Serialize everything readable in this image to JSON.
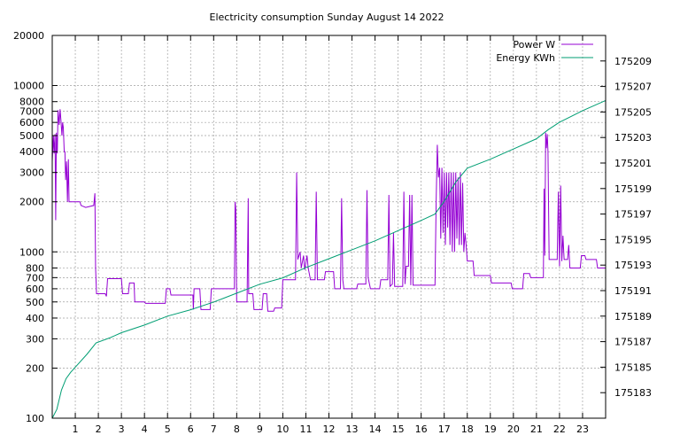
{
  "chart_data": {
    "type": "line",
    "title": "Electricity consumption Sunday August 14 2022",
    "xlabel": "",
    "ylabel": "",
    "y2label": "",
    "x_range": [
      0,
      24
    ],
    "x_ticks": [
      1,
      2,
      3,
      4,
      5,
      6,
      7,
      8,
      9,
      10,
      11,
      12,
      13,
      14,
      15,
      16,
      17,
      18,
      19,
      20,
      21,
      22,
      23
    ],
    "y_scale": "log",
    "y_range": [
      100,
      20000
    ],
    "y_ticks": [
      100,
      200,
      300,
      400,
      500,
      600,
      700,
      800,
      1000,
      2000,
      3000,
      4000,
      5000,
      6000,
      7000,
      8000,
      10000,
      20000
    ],
    "y2_range": [
      175181,
      175211
    ],
    "y2_ticks": [
      175183,
      175185,
      175187,
      175189,
      175191,
      175193,
      175195,
      175197,
      175199,
      175201,
      175203,
      175205,
      175207,
      175209
    ],
    "grid": true,
    "legend_position": "top-right",
    "series": [
      {
        "name": "Power W",
        "axis": "left",
        "color": "#9400d3",
        "points": [
          [
            0.0,
            3500
          ],
          [
            0.05,
            5000
          ],
          [
            0.08,
            3900
          ],
          [
            0.12,
            5100
          ],
          [
            0.15,
            1550
          ],
          [
            0.18,
            5200
          ],
          [
            0.22,
            3900
          ],
          [
            0.25,
            7100
          ],
          [
            0.3,
            5800
          ],
          [
            0.34,
            7200
          ],
          [
            0.38,
            6100
          ],
          [
            0.42,
            5000
          ],
          [
            0.45,
            6000
          ],
          [
            0.48,
            5600
          ],
          [
            0.52,
            4000
          ],
          [
            0.55,
            4000
          ],
          [
            0.58,
            2700
          ],
          [
            0.62,
            3500
          ],
          [
            0.66,
            2000
          ],
          [
            0.7,
            3600
          ],
          [
            0.73,
            2000
          ],
          [
            1.2,
            2000
          ],
          [
            1.25,
            1900
          ],
          [
            1.45,
            1850
          ],
          [
            1.8,
            1900
          ],
          [
            1.85,
            2250
          ],
          [
            1.88,
            800
          ],
          [
            1.92,
            560
          ],
          [
            2.3,
            560
          ],
          [
            2.35,
            540
          ],
          [
            2.4,
            690
          ],
          [
            3.0,
            690
          ],
          [
            3.05,
            560
          ],
          [
            3.3,
            560
          ],
          [
            3.35,
            650
          ],
          [
            3.55,
            650
          ],
          [
            3.58,
            500
          ],
          [
            4.0,
            500
          ],
          [
            4.05,
            490
          ],
          [
            4.9,
            490
          ],
          [
            4.95,
            600
          ],
          [
            5.1,
            600
          ],
          [
            5.15,
            550
          ],
          [
            6.1,
            550
          ],
          [
            6.12,
            450
          ],
          [
            6.15,
            600
          ],
          [
            6.4,
            600
          ],
          [
            6.45,
            450
          ],
          [
            6.85,
            450
          ],
          [
            6.9,
            600
          ],
          [
            7.9,
            600
          ],
          [
            7.93,
            2000
          ],
          [
            7.96,
            1800
          ],
          [
            8.0,
            500
          ],
          [
            8.45,
            500
          ],
          [
            8.5,
            2100
          ],
          [
            8.52,
            560
          ],
          [
            8.7,
            560
          ],
          [
            8.75,
            450
          ],
          [
            9.1,
            450
          ],
          [
            9.15,
            560
          ],
          [
            9.3,
            560
          ],
          [
            9.35,
            440
          ],
          [
            9.6,
            440
          ],
          [
            9.65,
            460
          ],
          [
            9.95,
            460
          ],
          [
            10.0,
            680
          ],
          [
            10.55,
            680
          ],
          [
            10.6,
            3000
          ],
          [
            10.65,
            900
          ],
          [
            10.75,
            1000
          ],
          [
            10.8,
            800
          ],
          [
            10.9,
            950
          ],
          [
            10.95,
            780
          ],
          [
            11.05,
            950
          ],
          [
            11.1,
            800
          ],
          [
            11.2,
            680
          ],
          [
            11.4,
            680
          ],
          [
            11.45,
            2300
          ],
          [
            11.5,
            680
          ],
          [
            11.8,
            680
          ],
          [
            11.85,
            760
          ],
          [
            12.2,
            760
          ],
          [
            12.25,
            600
          ],
          [
            12.5,
            600
          ],
          [
            12.55,
            2100
          ],
          [
            12.6,
            680
          ],
          [
            12.65,
            600
          ],
          [
            13.2,
            600
          ],
          [
            13.25,
            640
          ],
          [
            13.6,
            640
          ],
          [
            13.65,
            2350
          ],
          [
            13.7,
            700
          ],
          [
            13.8,
            600
          ],
          [
            14.2,
            600
          ],
          [
            14.25,
            680
          ],
          [
            14.55,
            680
          ],
          [
            14.6,
            2200
          ],
          [
            14.65,
            620
          ],
          [
            14.75,
            640
          ],
          [
            14.8,
            1300
          ],
          [
            14.85,
            620
          ],
          [
            15.2,
            620
          ],
          [
            15.25,
            2300
          ],
          [
            15.3,
            640
          ],
          [
            15.35,
            820
          ],
          [
            15.45,
            820
          ],
          [
            15.5,
            2200
          ],
          [
            15.55,
            630
          ],
          [
            15.6,
            2200
          ],
          [
            15.65,
            630
          ],
          [
            15.7,
            630
          ],
          [
            16.6,
            630
          ],
          [
            16.65,
            2000
          ],
          [
            16.7,
            4400
          ],
          [
            16.75,
            2800
          ],
          [
            16.8,
            3200
          ],
          [
            16.85,
            1200
          ],
          [
            16.9,
            3200
          ],
          [
            16.95,
            1300
          ],
          [
            17.0,
            3000
          ],
          [
            17.05,
            1100
          ],
          [
            17.1,
            3000
          ],
          [
            17.15,
            1400
          ],
          [
            17.2,
            3000
          ],
          [
            17.25,
            1100
          ],
          [
            17.3,
            3000
          ],
          [
            17.35,
            1000
          ],
          [
            17.4,
            3000
          ],
          [
            17.45,
            1000
          ],
          [
            17.5,
            3000
          ],
          [
            17.55,
            1200
          ],
          [
            17.6,
            2800
          ],
          [
            17.65,
            1100
          ],
          [
            17.7,
            3000
          ],
          [
            17.75,
            1100
          ],
          [
            17.8,
            2600
          ],
          [
            17.85,
            1000
          ],
          [
            17.9,
            1300
          ],
          [
            17.95,
            1100
          ],
          [
            18.0,
            880
          ],
          [
            18.25,
            880
          ],
          [
            18.3,
            720
          ],
          [
            19.0,
            720
          ],
          [
            19.05,
            650
          ],
          [
            19.9,
            650
          ],
          [
            19.95,
            600
          ],
          [
            20.4,
            600
          ],
          [
            20.45,
            740
          ],
          [
            20.7,
            740
          ],
          [
            20.75,
            700
          ],
          [
            21.3,
            700
          ],
          [
            21.33,
            2400
          ],
          [
            21.36,
            950
          ],
          [
            21.4,
            5200
          ],
          [
            21.43,
            4200
          ],
          [
            21.47,
            5100
          ],
          [
            21.5,
            4000
          ],
          [
            21.55,
            900
          ],
          [
            21.9,
            900
          ],
          [
            21.95,
            2300
          ],
          [
            22.0,
            820
          ],
          [
            22.05,
            2500
          ],
          [
            22.1,
            880
          ],
          [
            22.15,
            1250
          ],
          [
            22.2,
            900
          ],
          [
            22.35,
            900
          ],
          [
            22.4,
            1100
          ],
          [
            22.45,
            800
          ],
          [
            22.9,
            800
          ],
          [
            22.95,
            950
          ],
          [
            23.1,
            950
          ],
          [
            23.15,
            900
          ],
          [
            23.6,
            900
          ],
          [
            23.65,
            800
          ],
          [
            24.0,
            800
          ]
        ]
      },
      {
        "name": "Energy KWh",
        "axis": "right",
        "color": "#009e73",
        "points": [
          [
            0.0,
            175181.0
          ],
          [
            0.2,
            175181.7
          ],
          [
            0.4,
            175183.2
          ],
          [
            0.6,
            175184.1
          ],
          [
            0.8,
            175184.6
          ],
          [
            1.0,
            175185.0
          ],
          [
            1.5,
            175186.0
          ],
          [
            1.9,
            175186.9
          ],
          [
            2.5,
            175187.3
          ],
          [
            3.0,
            175187.7
          ],
          [
            4.0,
            175188.3
          ],
          [
            5.0,
            175189.0
          ],
          [
            6.0,
            175189.5
          ],
          [
            7.0,
            175190.1
          ],
          [
            8.0,
            175190.8
          ],
          [
            9.0,
            175191.5
          ],
          [
            10.0,
            175192.0
          ],
          [
            11.0,
            175192.8
          ],
          [
            12.0,
            175193.5
          ],
          [
            13.0,
            175194.2
          ],
          [
            14.0,
            175194.9
          ],
          [
            15.0,
            175195.7
          ],
          [
            16.0,
            175196.5
          ],
          [
            16.6,
            175197.0
          ],
          [
            17.0,
            175198.0
          ],
          [
            17.5,
            175199.5
          ],
          [
            18.0,
            175200.6
          ],
          [
            19.0,
            175201.3
          ],
          [
            20.0,
            175202.1
          ],
          [
            21.0,
            175202.9
          ],
          [
            21.5,
            175203.6
          ],
          [
            22.0,
            175204.2
          ],
          [
            23.0,
            175205.1
          ],
          [
            24.0,
            175205.9
          ]
        ]
      }
    ]
  }
}
